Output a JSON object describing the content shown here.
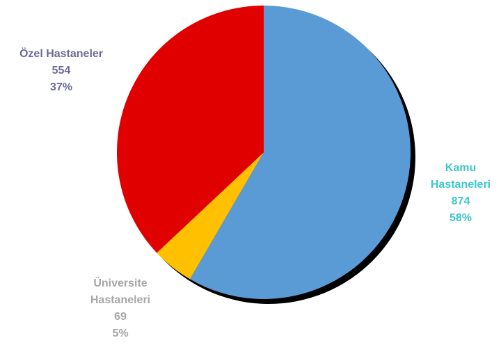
{
  "chart_data": {
    "type": "pie",
    "title": "",
    "start_angle_deg": 0,
    "direction": "clockwise",
    "slices": [
      {
        "name": "Kamu",
        "name_line2": "Hastaneleri",
        "value": 874,
        "percent_label": "58%",
        "color": "#5b9bd5",
        "label_color": "#3cc8c8"
      },
      {
        "name": "Üniversite",
        "name_line2": "Hastaneleri",
        "value": 69,
        "percent_label": "5%",
        "color": "#ffc000",
        "label_color": "#a6a6a6"
      },
      {
        "name": "Özel Hastaneler",
        "name_line2": "",
        "value": 554,
        "percent_label": "37%",
        "color": "#e00000",
        "label_color": "#6b6b9a"
      }
    ],
    "shadow_color": "#000000"
  }
}
